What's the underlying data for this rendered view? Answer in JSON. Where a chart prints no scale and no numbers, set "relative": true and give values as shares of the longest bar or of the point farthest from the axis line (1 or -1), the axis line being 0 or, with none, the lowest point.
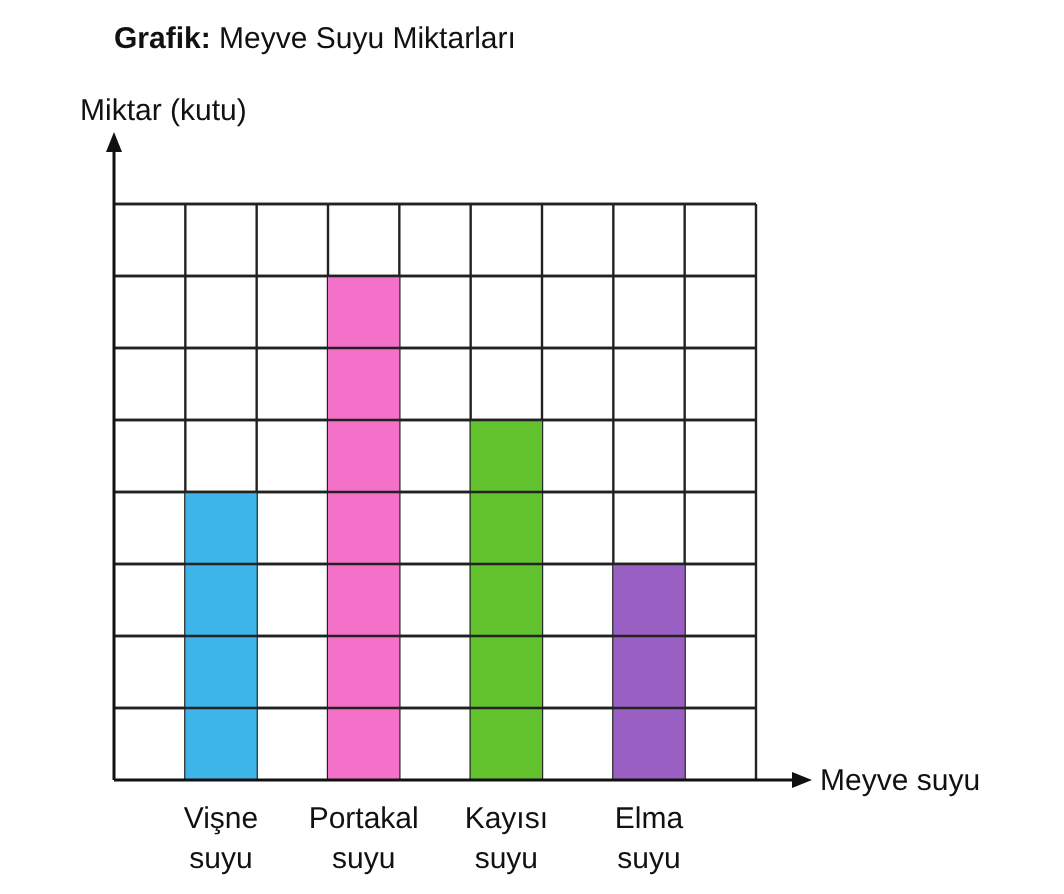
{
  "chart_data": {
    "type": "bar",
    "title": "Grafik: Meyve Suyu Miktarları",
    "xlabel": "Meyve suyu",
    "ylabel": "Miktar (kutu)",
    "categories": [
      "Vişne suyu",
      "Portakal suyu",
      "Kayısı suyu",
      "Elma suyu"
    ],
    "values": [
      0.571,
      1,
      0.714,
      0.429
    ],
    "colors": [
      "#3db5e8",
      "#f471c9",
      "#62c22e",
      "#9a5fc2"
    ],
    "relative": true,
    "grid": true
  }
}
